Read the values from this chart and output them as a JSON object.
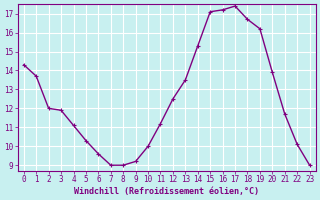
{
  "x": [
    0,
    1,
    2,
    3,
    4,
    5,
    6,
    7,
    8,
    9,
    10,
    11,
    12,
    13,
    14,
    15,
    16,
    17,
    18,
    19,
    20,
    21,
    22,
    23
  ],
  "y": [
    14.3,
    13.7,
    12.0,
    11.9,
    11.1,
    10.3,
    9.6,
    9.0,
    9.0,
    9.2,
    10.0,
    11.2,
    12.5,
    13.5,
    15.3,
    17.1,
    17.2,
    17.4,
    16.7,
    16.2,
    13.9,
    11.7,
    10.1,
    9.0
  ],
  "line_color": "#800080",
  "marker_color": "#800080",
  "bg_color": "#c8f0f0",
  "grid_color": "#ffffff",
  "xlabel": "Windchill (Refroidissement éolien,°C)",
  "ylabel": "",
  "xlim_min": -0.5,
  "xlim_max": 23.5,
  "ylim_min": 8.7,
  "ylim_max": 17.5,
  "yticks": [
    9,
    10,
    11,
    12,
    13,
    14,
    15,
    16,
    17
  ],
  "xticks": [
    0,
    1,
    2,
    3,
    4,
    5,
    6,
    7,
    8,
    9,
    10,
    11,
    12,
    13,
    14,
    15,
    16,
    17,
    18,
    19,
    20,
    21,
    22,
    23
  ],
  "tick_color": "#800080",
  "xlabel_color": "#800080",
  "line_width": 1.0,
  "marker_size": 2.5,
  "tick_fontsize": 5.5,
  "xlabel_fontsize": 6.0
}
